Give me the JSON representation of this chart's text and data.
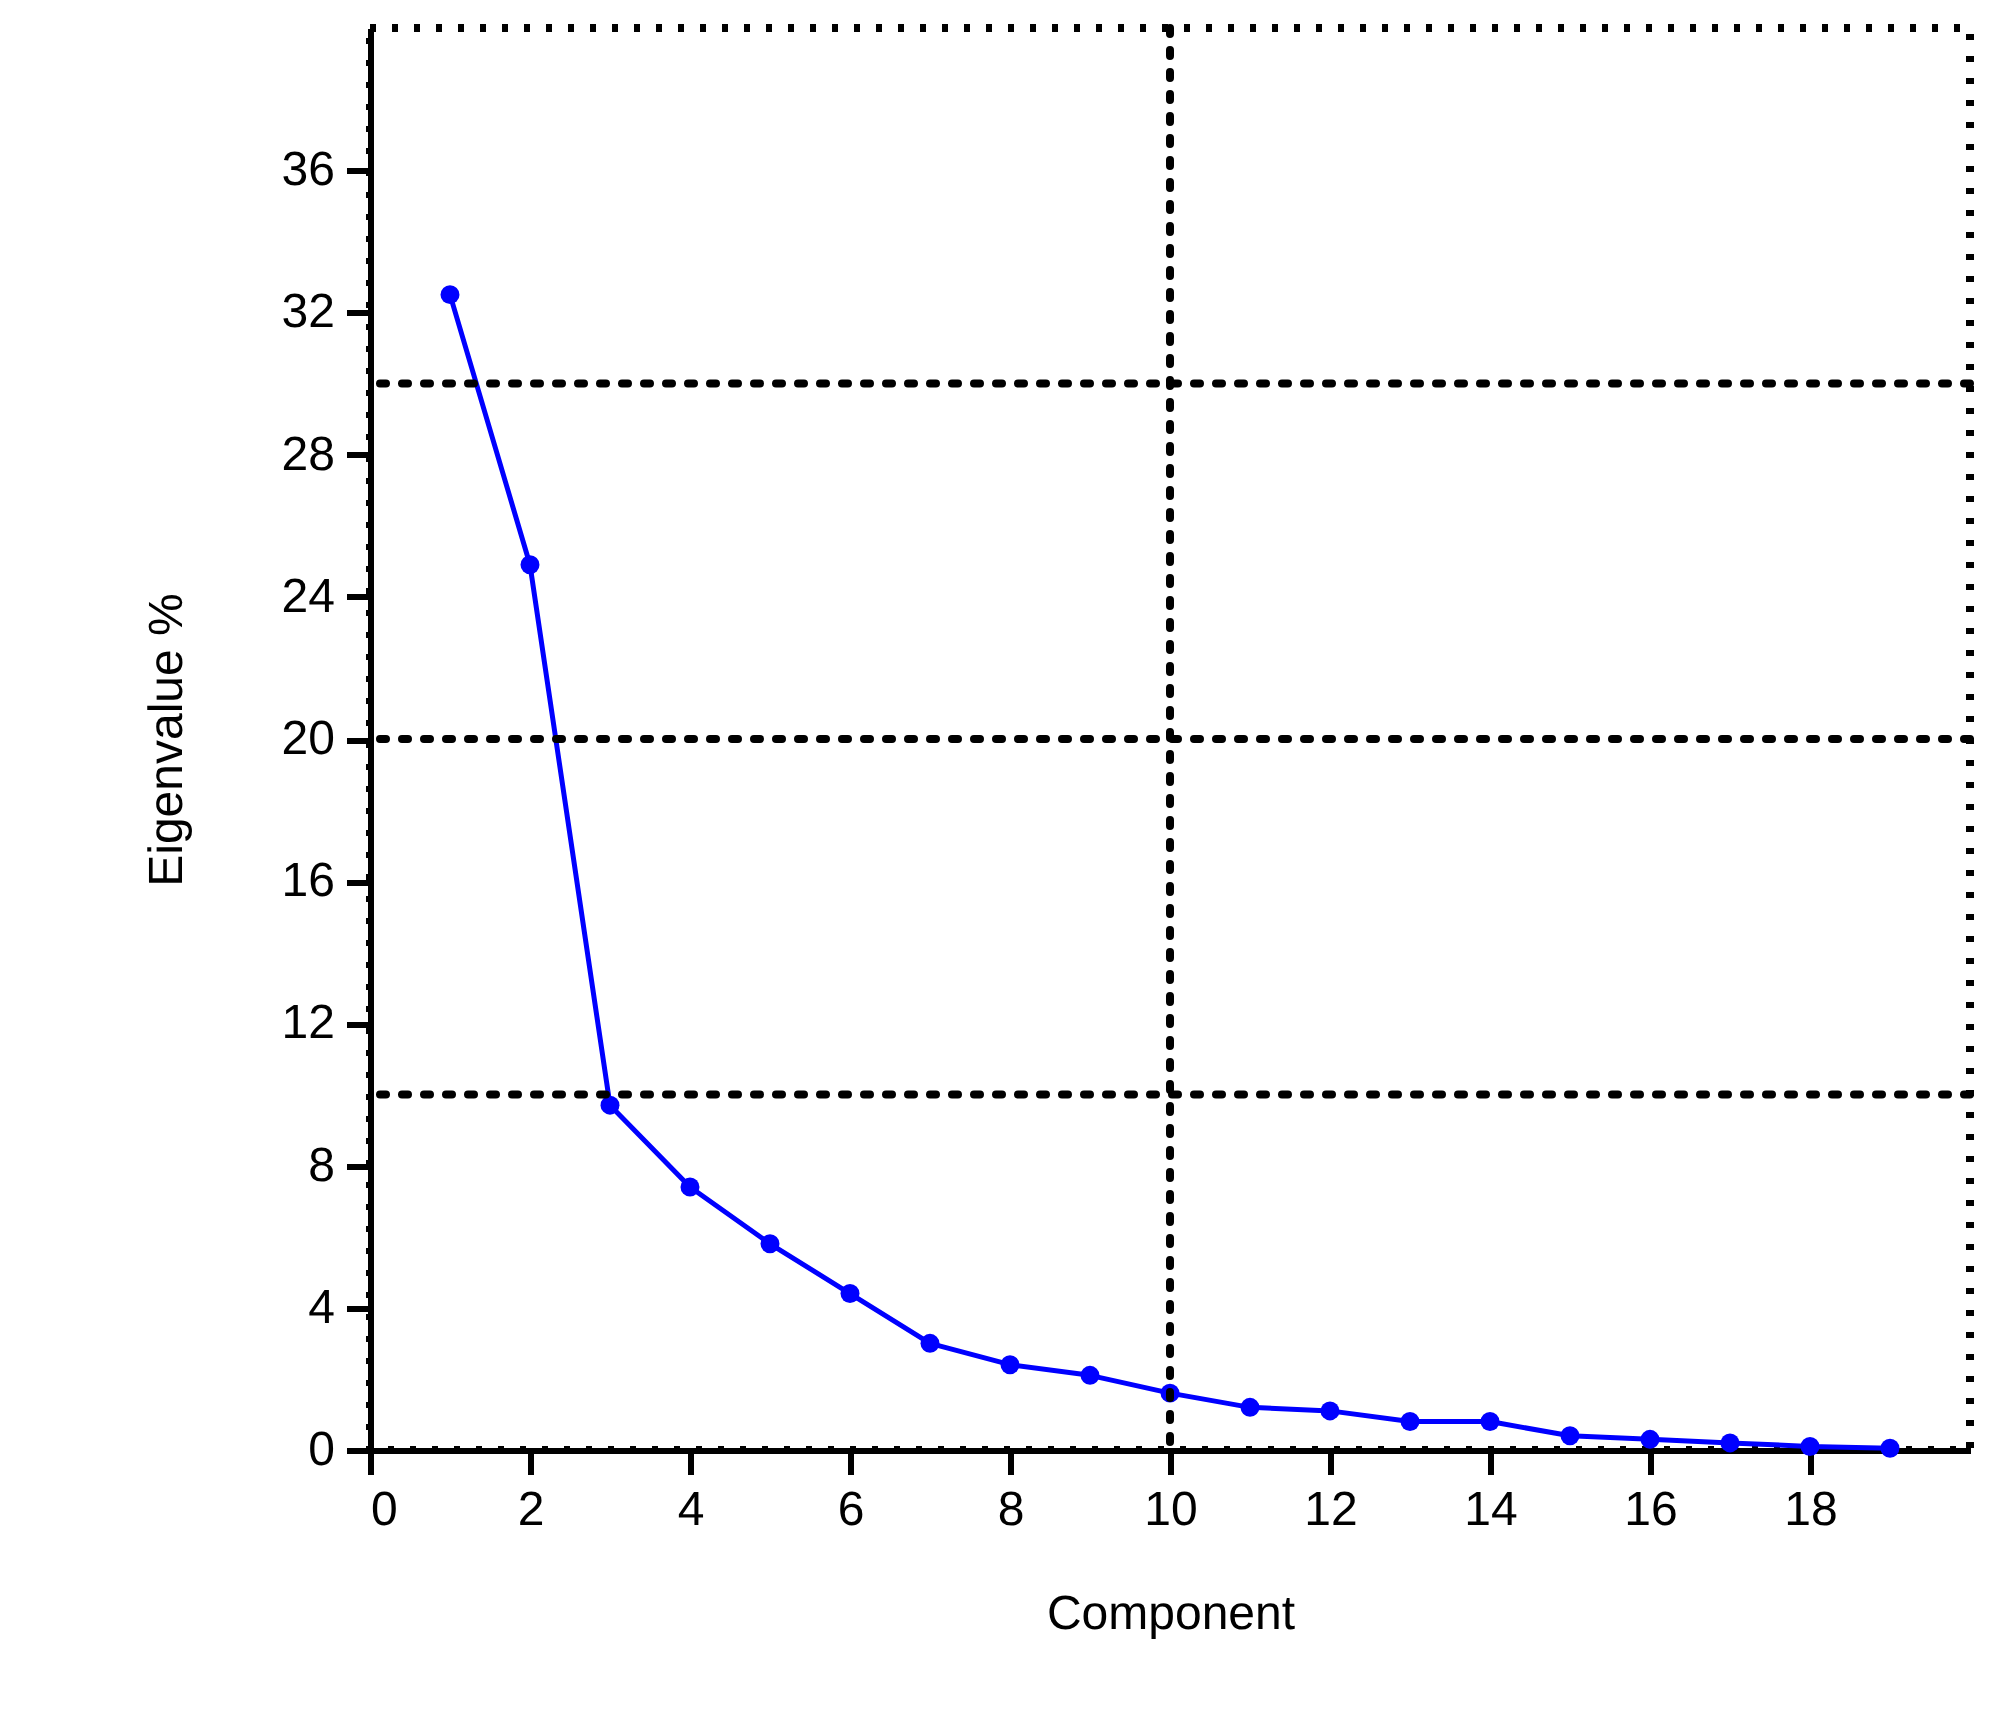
{
  "chart_data": {
    "type": "line",
    "xlabel": "Component",
    "ylabel": "Eigenvalue %",
    "x": [
      1,
      2,
      3,
      4,
      5,
      6,
      7,
      8,
      9,
      10,
      11,
      12,
      13,
      14,
      15,
      16,
      17,
      18,
      19
    ],
    "series": [
      {
        "color": "#0000ff",
        "values": [
          32.5,
          24.9,
          9.7,
          7.4,
          5.8,
          4.4,
          3.0,
          2.4,
          2.1,
          1.6,
          1.2,
          1.1,
          0.8,
          0.8,
          0.4,
          0.3,
          0.2,
          0.1,
          0.05
        ]
      }
    ],
    "xlim": [
      0,
      20
    ],
    "xticks": [
      0,
      2,
      4,
      6,
      8,
      10,
      12,
      14,
      16,
      18
    ],
    "ylim": [
      0,
      40
    ],
    "yticks": [
      0,
      4,
      8,
      12,
      16,
      20,
      24,
      28,
      32,
      36
    ],
    "ref_lines": [
      {
        "axis": "y",
        "value": 30,
        "color": "#000000",
        "line_style": "dotted"
      },
      {
        "axis": "y",
        "value": 20,
        "color": "#000000",
        "line_style": "dotted"
      },
      {
        "axis": "y",
        "value": 10,
        "color": "#000000",
        "line_style": "dotted"
      },
      {
        "axis": "x",
        "value": 10,
        "color": "#000000",
        "line_style": "dotted"
      }
    ],
    "grid": false,
    "marker": "circle",
    "line_style": "solid"
  }
}
